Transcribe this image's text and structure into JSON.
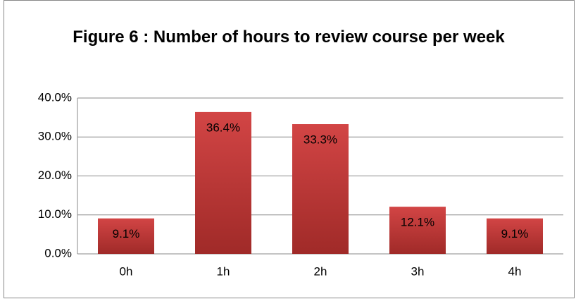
{
  "chart_data": {
    "type": "bar",
    "title": "Figure 6 : Number of hours to review course per week",
    "categories": [
      "0h",
      "1h",
      "2h",
      "3h",
      "4h"
    ],
    "values": [
      9.1,
      36.4,
      33.3,
      12.1,
      9.1
    ],
    "value_labels": [
      "9.1%",
      "36.4%",
      "33.3%",
      "12.1%",
      "9.1%"
    ],
    "color": "#c0392f",
    "ylim": [
      0,
      40
    ],
    "yticks": [
      {
        "value": 0,
        "label": "0.0%"
      },
      {
        "value": 10,
        "label": "10.0%"
      },
      {
        "value": 20,
        "label": "20.0%"
      },
      {
        "value": 30,
        "label": "30.0%"
      },
      {
        "value": 40,
        "label": "40.0%"
      }
    ],
    "grid": true
  }
}
